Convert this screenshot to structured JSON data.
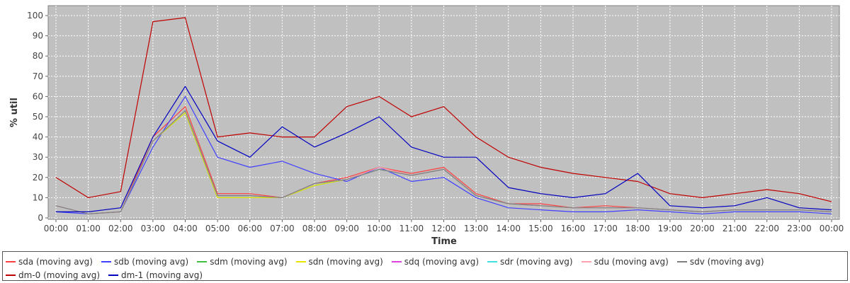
{
  "chart_data": {
    "type": "line",
    "title": "",
    "xlabel": "Time",
    "ylabel": "% util",
    "xlim": [
      "00:00",
      "00:00"
    ],
    "ylim": [
      0,
      100
    ],
    "grid": true,
    "legend_position": "bottom",
    "plot_background": "#c0c0c0",
    "x_ticks": [
      "00:00",
      "01:00",
      "02:00",
      "03:00",
      "04:00",
      "05:00",
      "06:00",
      "07:00",
      "08:00",
      "09:00",
      "10:00",
      "11:00",
      "12:00",
      "13:00",
      "14:00",
      "15:00",
      "16:00",
      "17:00",
      "18:00",
      "19:00",
      "20:00",
      "21:00",
      "22:00",
      "23:00",
      "00:00"
    ],
    "y_ticks": [
      0,
      10,
      20,
      30,
      40,
      50,
      60,
      70,
      80,
      90,
      100
    ],
    "x": [
      "00:00",
      "01:00",
      "02:00",
      "03:00",
      "04:00",
      "05:00",
      "06:00",
      "07:00",
      "08:00",
      "09:00",
      "10:00",
      "11:00",
      "12:00",
      "13:00",
      "14:00",
      "15:00",
      "16:00",
      "17:00",
      "18:00",
      "19:00",
      "20:00",
      "21:00",
      "22:00",
      "23:00",
      "00:00"
    ],
    "series": [
      {
        "name": "sda (moving avg)",
        "color": "#ff4040",
        "values": [
          6,
          2,
          3,
          40,
          55,
          12,
          12,
          10,
          17,
          20,
          25,
          22,
          25,
          12,
          7,
          7,
          5,
          6,
          5,
          4,
          3,
          4,
          4,
          4,
          3
        ]
      },
      {
        "name": "sdb (moving avg)",
        "color": "#4040ff",
        "values": [
          3,
          2,
          3,
          35,
          60,
          30,
          25,
          28,
          22,
          18,
          25,
          18,
          20,
          10,
          5,
          4,
          3,
          3,
          4,
          3,
          2,
          3,
          3,
          3,
          2
        ]
      },
      {
        "name": "sdm (moving avg)",
        "color": "#40c040",
        "values": [
          6,
          2,
          3,
          38,
          52,
          10,
          10,
          10,
          16,
          19,
          24,
          21,
          24,
          11,
          7,
          6,
          5,
          5,
          5,
          4,
          3,
          4,
          4,
          4,
          3
        ]
      },
      {
        "name": "sdn (moving avg)",
        "color": "#e6e600",
        "values": [
          6,
          2,
          3,
          38,
          52,
          10,
          10,
          10,
          16,
          19,
          24,
          21,
          24,
          11,
          7,
          6,
          5,
          5,
          5,
          4,
          3,
          4,
          4,
          4,
          3
        ]
      },
      {
        "name": "sdq (moving avg)",
        "color": "#e040e0",
        "values": [
          6,
          2,
          3,
          38,
          53,
          11,
          11,
          10,
          17,
          19,
          24,
          21,
          24,
          11,
          7,
          6,
          5,
          5,
          5,
          4,
          3,
          4,
          4,
          4,
          3
        ]
      },
      {
        "name": "sdr (moving avg)",
        "color": "#40e0e0",
        "values": [
          6,
          2,
          3,
          38,
          53,
          11,
          11,
          10,
          17,
          19,
          24,
          21,
          24,
          11,
          7,
          6,
          5,
          5,
          5,
          4,
          3,
          4,
          4,
          4,
          3
        ]
      },
      {
        "name": "sdu (moving avg)",
        "color": "#ffa0b0",
        "values": [
          6,
          2,
          3,
          38,
          53,
          11,
          11,
          10,
          17,
          19,
          25,
          21,
          24,
          11,
          7,
          6,
          5,
          5,
          5,
          4,
          3,
          4,
          4,
          4,
          3
        ]
      },
      {
        "name": "sdv (moving avg)",
        "color": "#808080",
        "values": [
          6,
          2,
          3,
          38,
          53,
          11,
          11,
          10,
          17,
          19,
          24,
          21,
          24,
          11,
          7,
          6,
          5,
          5,
          5,
          4,
          3,
          4,
          4,
          4,
          3
        ]
      },
      {
        "name": "dm-0 (moving avg)",
        "color": "#c00000",
        "values": [
          20,
          10,
          13,
          97,
          99,
          40,
          42,
          40,
          40,
          55,
          60,
          50,
          55,
          40,
          30,
          25,
          22,
          20,
          18,
          12,
          10,
          12,
          14,
          12,
          8
        ]
      },
      {
        "name": "dm-1 (moving avg)",
        "color": "#0000c0",
        "values": [
          3,
          3,
          5,
          40,
          65,
          38,
          30,
          45,
          35,
          42,
          50,
          35,
          30,
          30,
          15,
          12,
          10,
          12,
          22,
          6,
          5,
          6,
          10,
          5,
          4
        ]
      }
    ]
  }
}
